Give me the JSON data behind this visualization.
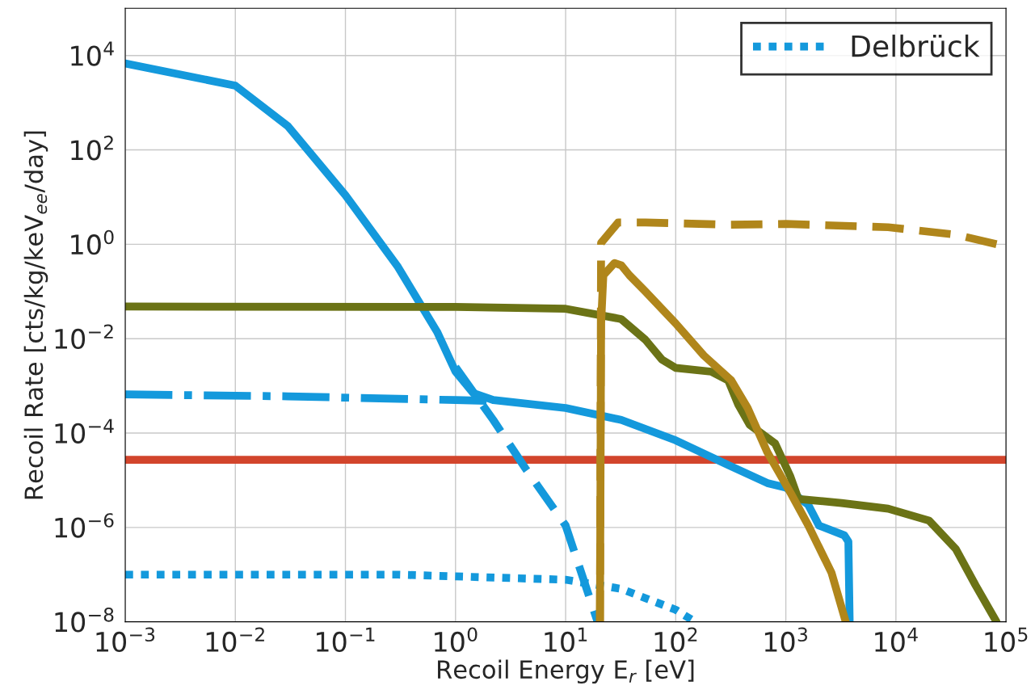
{
  "chart_data": {
    "type": "line",
    "xlabel": "Recoil Energy E$_{r}$ [eV]",
    "ylabel": "Recoil Rate [cts/kg/keV$_{ee}$/day]",
    "log": "xy",
    "grid": true,
    "legend": "top right",
    "xlim": [
      0.001,
      100000
    ],
    "ylim": [
      1e-08,
      100000
    ],
    "xticks": [
      {
        "value": 0.001,
        "label": "10$^{−3}$"
      },
      {
        "value": 0.01,
        "label": "10$^{−2}$"
      },
      {
        "value": 0.1,
        "label": "10$^{−1}$"
      },
      {
        "value": 1,
        "label": "10$^{0}$"
      },
      {
        "value": 10,
        "label": "10$^{1}$"
      },
      {
        "value": 100,
        "label": "10$^{2}$"
      },
      {
        "value": 1000,
        "label": "10$^{3}$"
      },
      {
        "value": 10000,
        "label": "10$^{4}$"
      },
      {
        "value": 100000,
        "label": "10$^{5}$"
      }
    ],
    "yticks": [
      {
        "value": 1e-08,
        "label": "10$^{−8}$"
      },
      {
        "value": 1e-06,
        "label": "10$^{−6}$"
      },
      {
        "value": 0.0001,
        "label": "10$^{−4}$"
      },
      {
        "value": 0.01,
        "label": "10$^{−2}$"
      },
      {
        "value": 1,
        "label": "10$^{0}$"
      },
      {
        "value": 100,
        "label": "10$^{2}$"
      },
      {
        "value": 10000,
        "label": "10$^{4}$"
      }
    ],
    "ref_lines": [
      {
        "axis": "y",
        "value": 2.7e-05,
        "color": "#d2452c",
        "line_style": "solid"
      }
    ],
    "series": [
      {
        "color": "#1499dc",
        "line_style": "solid",
        "x": [
          0.001,
          0.01,
          0.03,
          0.1,
          0.3,
          0.68,
          1,
          1.45,
          2.2,
          10,
          32,
          100,
          300,
          680,
          1000,
          1600,
          2000,
          3400,
          3700,
          3800
        ],
        "values": [
          6800,
          2300,
          320,
          11,
          0.33,
          0.014,
          0.002,
          0.0007,
          0.0005,
          0.00034,
          0.00019,
          7e-05,
          2.1e-05,
          8.7e-06,
          7e-06,
          3e-06,
          1.1e-06,
          6.8e-07,
          5e-07,
          1e-08
        ]
      },
      {
        "color": "#1499dc",
        "line_style": "dashed",
        "x": [
          1,
          2.2,
          4.3,
          10,
          19.5
        ],
        "values": [
          0.0025,
          0.00019,
          1.8e-05,
          1.1e-06,
          1e-08
        ]
      },
      {
        "color": "#1499dc",
        "line_style": "dashdot",
        "x": [
          0.001,
          0.03,
          1,
          2
        ],
        "values": [
          0.00066,
          0.0006,
          0.0005,
          0.00048
        ]
      },
      {
        "name": "Delbrück",
        "color": "#1499dc",
        "line_style": "dotted",
        "x": [
          0.001,
          0.3,
          10,
          32,
          100,
          150
        ],
        "values": [
          1e-07,
          1e-07,
          7.8e-08,
          5e-08,
          1.8e-08,
          1e-08
        ]
      },
      {
        "color": "#6b7316",
        "line_style": "solid",
        "x": [
          0.001,
          1,
          10,
          32,
          53,
          75,
          100,
          210,
          300,
          370,
          470,
          800,
          1100,
          1300,
          3200,
          8500,
          20000,
          35000,
          53000,
          82000
        ],
        "values": [
          0.048,
          0.047,
          0.043,
          0.026,
          0.0095,
          0.0036,
          0.0024,
          0.002,
          0.0013,
          0.0004,
          0.00015,
          6e-05,
          1.2e-05,
          4e-06,
          3.3e-06,
          2.5e-06,
          1.4e-06,
          3.5e-07,
          5.9e-08,
          1e-08
        ]
      },
      {
        "color": "#b0861b",
        "line_style": "solid",
        "x": [
          20.5,
          21,
          22,
          27.8,
          32,
          38,
          53,
          100,
          180,
          320,
          450,
          680,
          1100,
          1600,
          2600,
          3500
        ],
        "values": [
          1e-08,
          0.021,
          0.22,
          0.4,
          0.36,
          0.22,
          0.1,
          0.021,
          0.0044,
          0.0013,
          0.00034,
          3.9e-05,
          5.5e-06,
          1.1e-06,
          1.1e-07,
          1e-08
        ]
      },
      {
        "color": "#b0861b",
        "line_style": "dashed",
        "x": [
          20.5,
          21,
          30,
          53,
          300,
          1000,
          8500,
          35000,
          100000
        ],
        "values": [
          1e-08,
          1.07,
          2.9,
          2.9,
          2.6,
          2.7,
          2.3,
          1.6,
          0.9
        ]
      }
    ]
  }
}
